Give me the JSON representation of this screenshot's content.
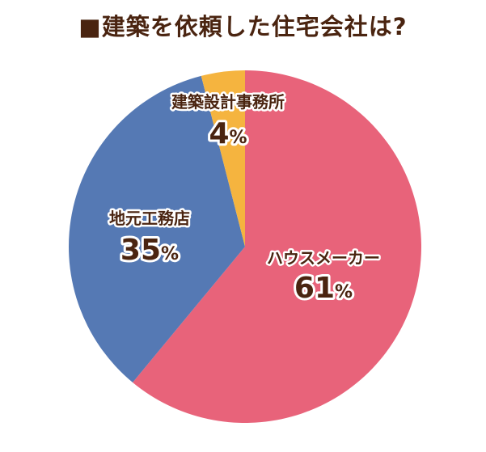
{
  "chart_data": {
    "type": "pie",
    "title": "■建築を依頼した住宅会社は?",
    "slices": [
      {
        "label": "ハウスメーカー",
        "value": 61,
        "display": "61",
        "unit": "%",
        "color": "#e8637a"
      },
      {
        "label": "地元工務店",
        "value": 35,
        "display": "35",
        "unit": "%",
        "color": "#5579b4"
      },
      {
        "label": "建築設計事務所",
        "value": 4,
        "display": "4",
        "unit": "%",
        "color": "#f5b43f"
      }
    ],
    "start_angle_deg": 0,
    "direction": "clockwise"
  }
}
